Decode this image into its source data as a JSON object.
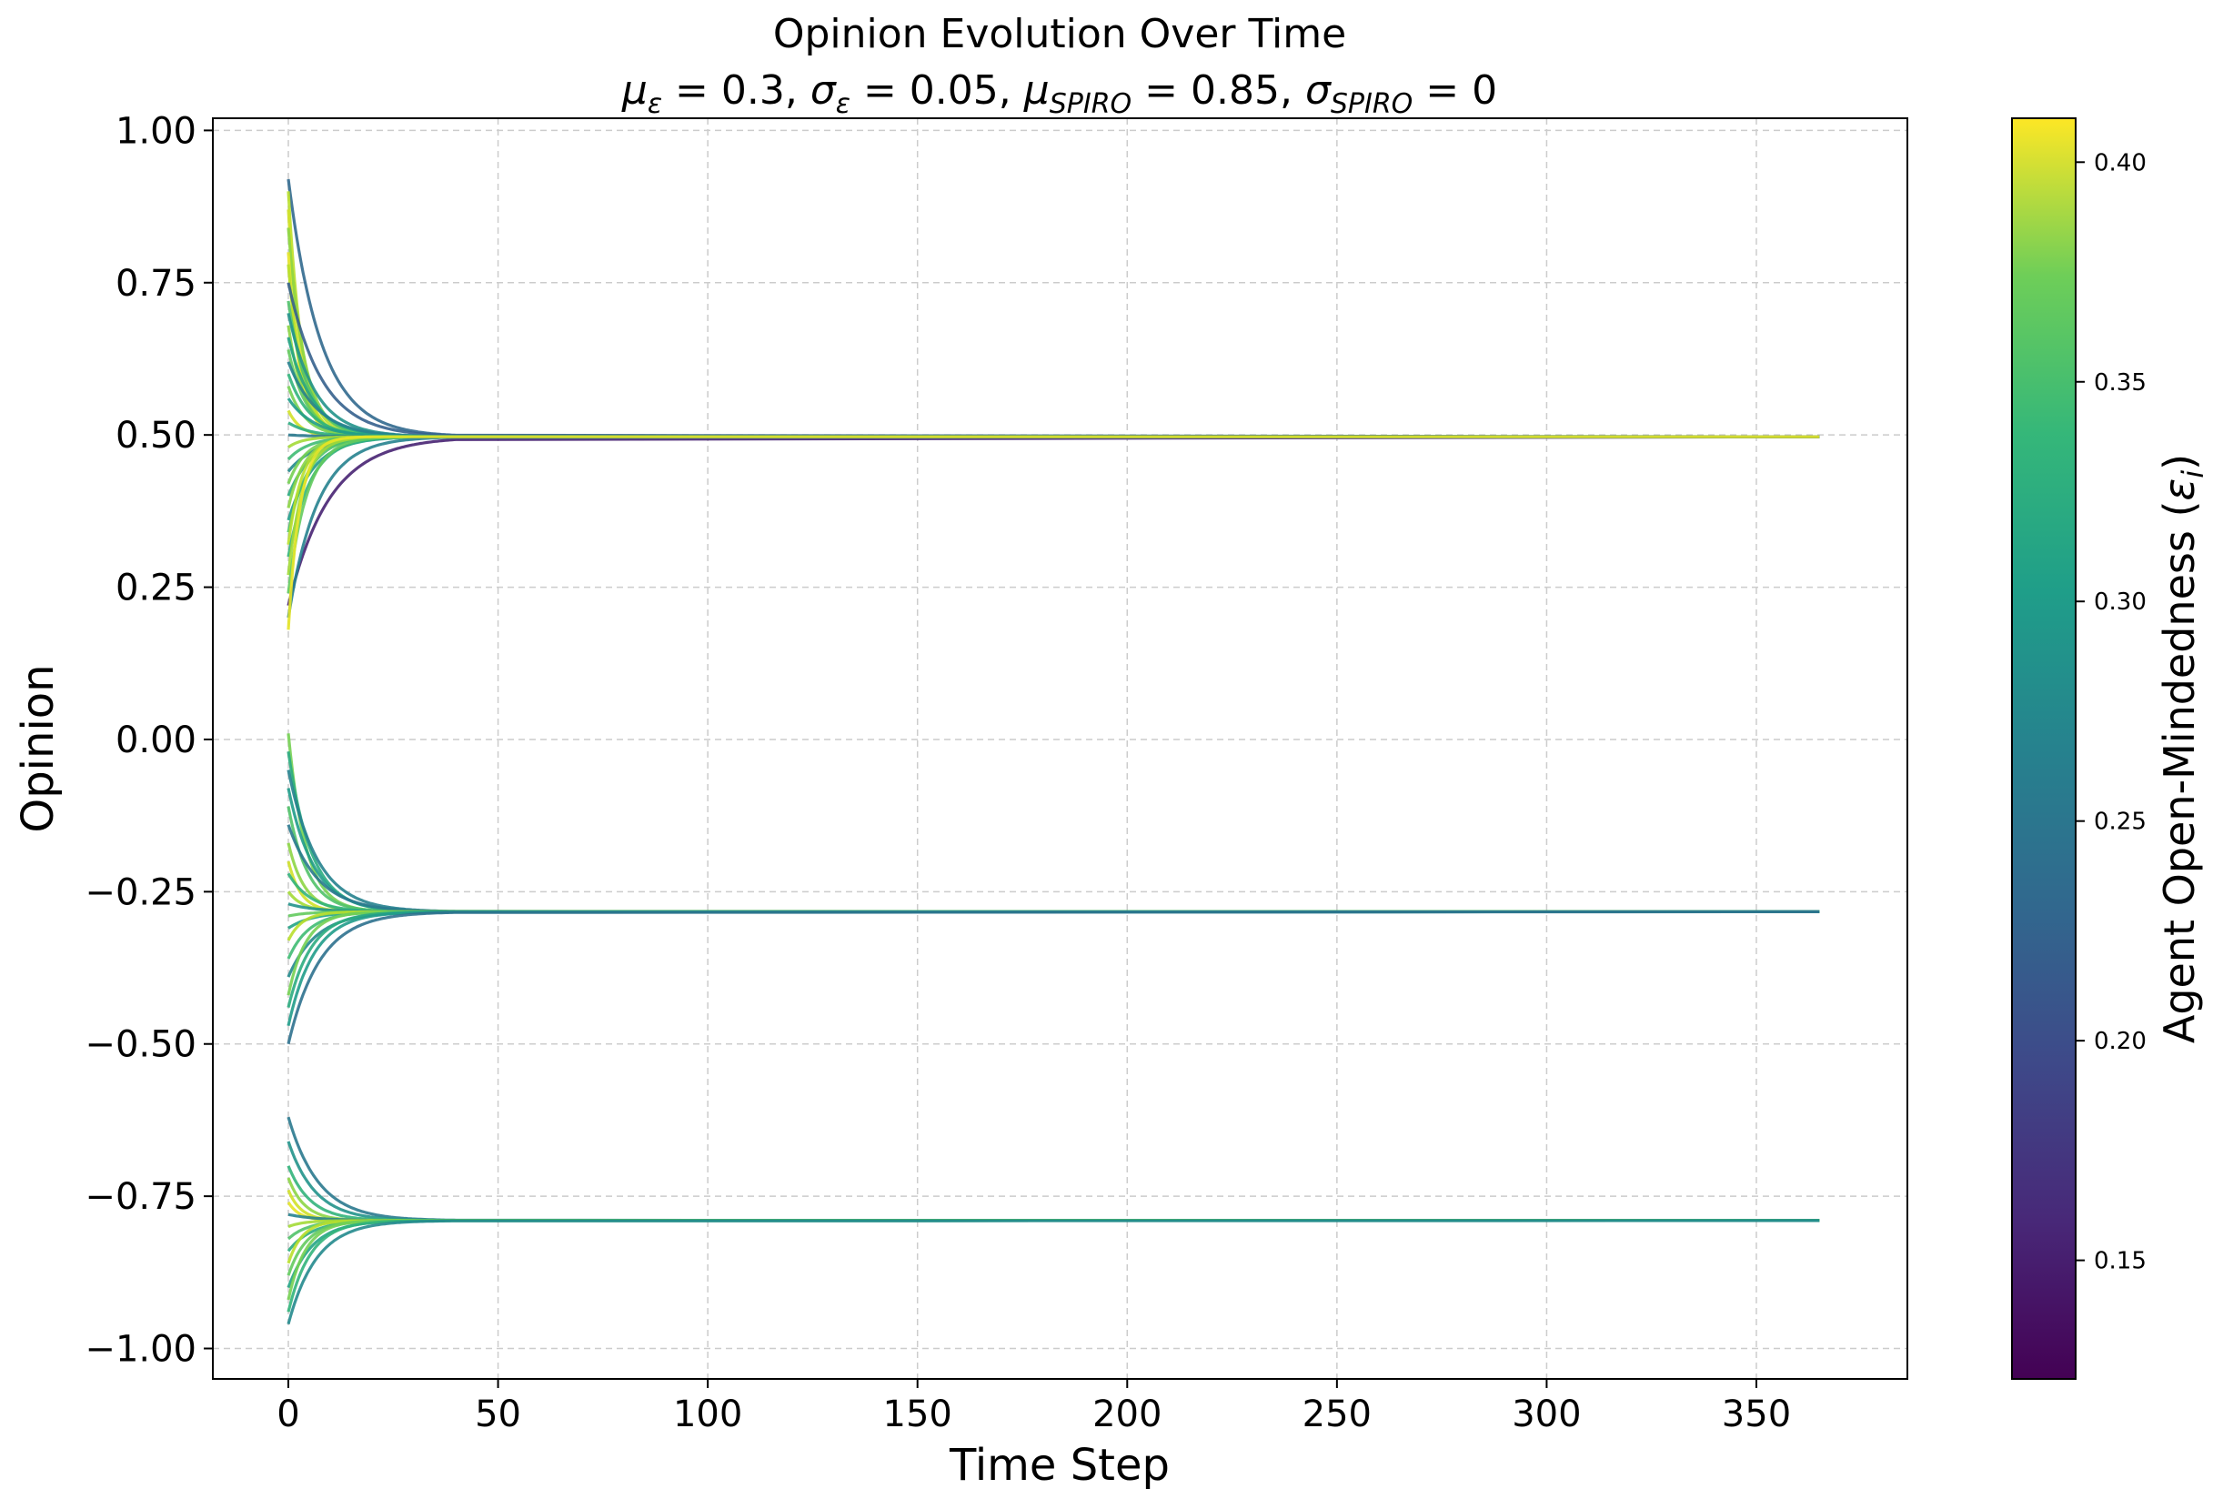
{
  "chart_data": {
    "type": "line",
    "title": "Opinion Evolution Over Time",
    "subtitle_parts": {
      "mu": "μ",
      "sigma": "σ",
      "eps": "ε",
      "spiro": "SPIRO",
      "mu_eps_value": " = 0.3, ",
      "sigma_eps_value": " = 0.05, ",
      "mu_spiro_value": " = 0.85, ",
      "sigma_spiro_value": " = 0"
    },
    "xlabel": "Time Step",
    "ylabel": "Opinion",
    "xlim": [
      -18,
      386
    ],
    "ylim": [
      -1.05,
      1.02
    ],
    "x_ticks": [
      0,
      50,
      100,
      150,
      200,
      250,
      300,
      350
    ],
    "x_tick_labels": [
      "0",
      "50",
      "100",
      "150",
      "200",
      "250",
      "300",
      "350"
    ],
    "y_ticks": [
      1.0,
      0.75,
      0.5,
      0.25,
      0.0,
      -0.25,
      -0.5,
      -0.75,
      -1.0
    ],
    "y_tick_labels": [
      "1.00",
      "0.75",
      "0.50",
      "0.25",
      "0.00",
      "−0.25",
      "−0.50",
      "−0.75",
      "−1.00"
    ],
    "grid": true,
    "t_end": 365,
    "colormap": "viridis",
    "colorbar": {
      "label_main": "Agent Open-Mindedness (",
      "label_var": "ε",
      "label_sub": "i",
      "label_close": ")",
      "range": [
        0.123,
        0.41
      ],
      "ticks": [
        0.15,
        0.2,
        0.25,
        0.3,
        0.35,
        0.4
      ],
      "tick_labels": [
        "0.15",
        "0.20",
        "0.25",
        "0.30",
        "0.35",
        "0.40"
      ]
    },
    "clusters": [
      {
        "final": 0.497,
        "agents": [
          {
            "start": 0.92,
            "eps": 0.22
          },
          {
            "start": 0.9,
            "eps": 0.38
          },
          {
            "start": 0.87,
            "eps": 0.39
          },
          {
            "start": 0.84,
            "eps": 0.36
          },
          {
            "start": 0.8,
            "eps": 0.4
          },
          {
            "start": 0.78,
            "eps": 0.38
          },
          {
            "start": 0.75,
            "eps": 0.21
          },
          {
            "start": 0.72,
            "eps": 0.33
          },
          {
            "start": 0.7,
            "eps": 0.27
          },
          {
            "start": 0.68,
            "eps": 0.36
          },
          {
            "start": 0.66,
            "eps": 0.29
          },
          {
            "start": 0.64,
            "eps": 0.34
          },
          {
            "start": 0.62,
            "eps": 0.25
          },
          {
            "start": 0.6,
            "eps": 0.31
          },
          {
            "start": 0.58,
            "eps": 0.35
          },
          {
            "start": 0.56,
            "eps": 0.28
          },
          {
            "start": 0.54,
            "eps": 0.39
          },
          {
            "start": 0.52,
            "eps": 0.3
          },
          {
            "start": 0.5,
            "eps": 0.24
          },
          {
            "start": 0.48,
            "eps": 0.37
          },
          {
            "start": 0.46,
            "eps": 0.32
          },
          {
            "start": 0.44,
            "eps": 0.26
          },
          {
            "start": 0.42,
            "eps": 0.35
          },
          {
            "start": 0.4,
            "eps": 0.3
          },
          {
            "start": 0.38,
            "eps": 0.36
          },
          {
            "start": 0.36,
            "eps": 0.28
          },
          {
            "start": 0.34,
            "eps": 0.33
          },
          {
            "start": 0.32,
            "eps": 0.38
          },
          {
            "start": 0.3,
            "eps": 0.31
          },
          {
            "start": 0.27,
            "eps": 0.37
          },
          {
            "start": 0.24,
            "eps": 0.34
          },
          {
            "start": 0.22,
            "eps": 0.15
          },
          {
            "start": 0.2,
            "eps": 0.25
          },
          {
            "start": 0.18,
            "eps": 0.4
          }
        ]
      },
      {
        "final": -0.283,
        "agents": [
          {
            "start": 0.01,
            "eps": 0.35
          },
          {
            "start": -0.02,
            "eps": 0.3
          },
          {
            "start": -0.05,
            "eps": 0.25
          },
          {
            "start": -0.08,
            "eps": 0.28
          },
          {
            "start": -0.11,
            "eps": 0.33
          },
          {
            "start": -0.14,
            "eps": 0.24
          },
          {
            "start": -0.17,
            "eps": 0.36
          },
          {
            "start": -0.2,
            "eps": 0.39
          },
          {
            "start": -0.22,
            "eps": 0.31
          },
          {
            "start": -0.25,
            "eps": 0.37
          },
          {
            "start": -0.27,
            "eps": 0.27
          },
          {
            "start": -0.29,
            "eps": 0.34
          },
          {
            "start": -0.31,
            "eps": 0.29
          },
          {
            "start": -0.33,
            "eps": 0.38
          },
          {
            "start": -0.36,
            "eps": 0.32
          },
          {
            "start": -0.39,
            "eps": 0.26
          },
          {
            "start": -0.42,
            "eps": 0.35
          },
          {
            "start": -0.44,
            "eps": 0.3
          },
          {
            "start": -0.47,
            "eps": 0.28
          },
          {
            "start": -0.5,
            "eps": 0.23
          }
        ]
      },
      {
        "final": -0.79,
        "agents": [
          {
            "start": -0.62,
            "eps": 0.24
          },
          {
            "start": -0.66,
            "eps": 0.27
          },
          {
            "start": -0.7,
            "eps": 0.31
          },
          {
            "start": -0.72,
            "eps": 0.36
          },
          {
            "start": -0.74,
            "eps": 0.39
          },
          {
            "start": -0.76,
            "eps": 0.4
          },
          {
            "start": -0.78,
            "eps": 0.25
          },
          {
            "start": -0.8,
            "eps": 0.37
          },
          {
            "start": -0.82,
            "eps": 0.33
          },
          {
            "start": -0.84,
            "eps": 0.3
          },
          {
            "start": -0.86,
            "eps": 0.38
          },
          {
            "start": -0.88,
            "eps": 0.34
          },
          {
            "start": -0.9,
            "eps": 0.29
          },
          {
            "start": -0.92,
            "eps": 0.35
          },
          {
            "start": -0.94,
            "eps": 0.31
          },
          {
            "start": -0.96,
            "eps": 0.26
          }
        ]
      }
    ]
  }
}
